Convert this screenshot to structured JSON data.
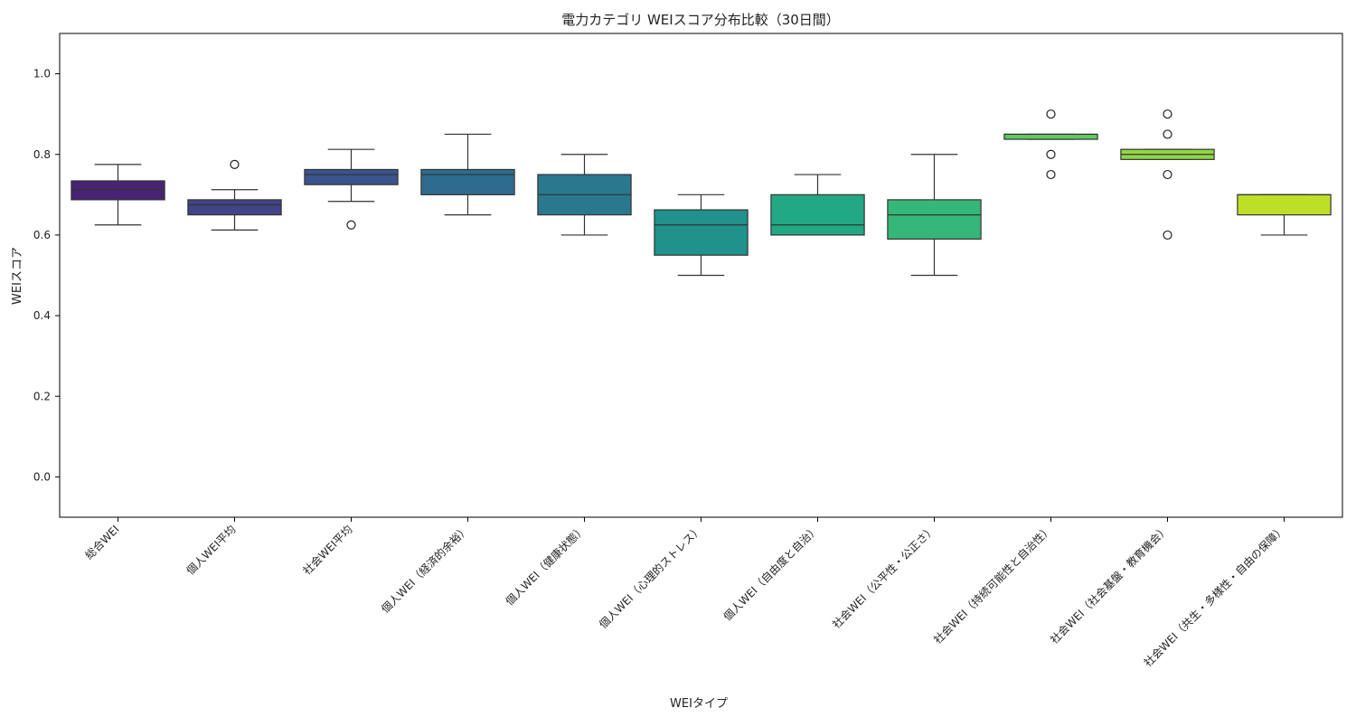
{
  "chart_data": {
    "type": "boxplot",
    "title": "電力カテゴリ WEIスコア分布比較（30日間）",
    "xlabel": "WEIタイプ",
    "ylabel": "WEIスコア",
    "ylim": [
      -0.1,
      1.1
    ],
    "yticks": [
      "0.0",
      "0.2",
      "0.4",
      "0.6",
      "0.8",
      "1.0"
    ],
    "ytick_values": [
      0.0,
      0.2,
      0.4,
      0.6,
      0.8,
      1.0
    ],
    "grid": false,
    "categories": [
      "総合WEI",
      "個人WEI平均",
      "社会WEI平均",
      "個人WEI（経済的余裕）",
      "個人WEI（健康状態）",
      "個人WEI（心理的ストレス）",
      "個人WEI（自由度と自治）",
      "社会WEI（公平性・公正さ）",
      "社会WEI（持続可能性と自治性）",
      "社会WEI（社会基盤・教育機会）",
      "社会WEI（共生・多様性・自由の保障）"
    ],
    "boxes": [
      {
        "whisker_low": 0.625,
        "q1": 0.6875,
        "median": 0.7125,
        "q3": 0.7344,
        "whisker_high": 0.775,
        "outliers": [],
        "color": "#482374"
      },
      {
        "whisker_low": 0.6125,
        "q1": 0.65,
        "median": 0.675,
        "q3": 0.6875,
        "whisker_high": 0.7125,
        "outliers": [
          0.775
        ],
        "color": "#414487"
      },
      {
        "whisker_low": 0.6833,
        "q1": 0.725,
        "median": 0.75,
        "q3": 0.7625,
        "whisker_high": 0.8125,
        "outliers": [
          0.625
        ],
        "color": "#3a548c"
      },
      {
        "whisker_low": 0.65,
        "q1": 0.7,
        "median": 0.75,
        "q3": 0.7625,
        "whisker_high": 0.85,
        "outliers": [],
        "color": "#2f6b8e"
      },
      {
        "whisker_low": 0.6,
        "q1": 0.65,
        "median": 0.7,
        "q3": 0.75,
        "whisker_high": 0.8,
        "outliers": [],
        "color": "#2a788e"
      },
      {
        "whisker_low": 0.5,
        "q1": 0.55,
        "median": 0.625,
        "q3": 0.6625,
        "whisker_high": 0.7,
        "outliers": [],
        "color": "#21918c"
      },
      {
        "whisker_low": 0.6,
        "q1": 0.6,
        "median": 0.625,
        "q3": 0.7,
        "whisker_high": 0.75,
        "outliers": [],
        "color": "#22a884"
      },
      {
        "whisker_low": 0.5,
        "q1": 0.59,
        "median": 0.65,
        "q3": 0.6875,
        "whisker_high": 0.8,
        "outliers": [],
        "color": "#35b779"
      },
      {
        "whisker_low": 0.8375,
        "q1": 0.8375,
        "median": 0.85,
        "q3": 0.85,
        "whisker_high": 0.85,
        "outliers": [
          0.9,
          0.8,
          0.75
        ],
        "color": "#5ec962"
      },
      {
        "whisker_low": 0.7875,
        "q1": 0.7875,
        "median": 0.8,
        "q3": 0.8125,
        "whisker_high": 0.8125,
        "outliers": [
          0.9,
          0.85,
          0.75,
          0.6
        ],
        "color": "#8fd744"
      },
      {
        "whisker_low": 0.6,
        "q1": 0.65,
        "median": 0.7,
        "q3": 0.7,
        "whisker_high": 0.7,
        "outliers": [],
        "color": "#bddf26"
      }
    ]
  }
}
